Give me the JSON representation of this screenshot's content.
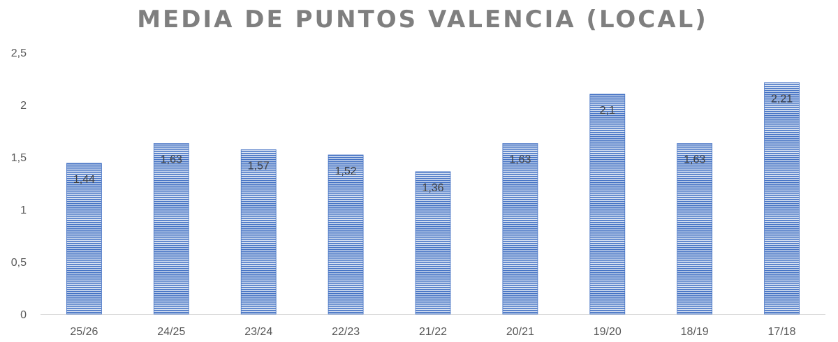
{
  "chart_data": {
    "type": "bar",
    "title": "MEDIA DE PUNTOS VALENCIA (LOCAL)",
    "xlabel": "",
    "ylabel": "",
    "categories": [
      "25/26",
      "24/25",
      "23/24",
      "22/23",
      "21/22",
      "20/21",
      "19/20",
      "18/19",
      "17/18"
    ],
    "values": [
      1.44,
      1.63,
      1.57,
      1.52,
      1.36,
      1.63,
      2.1,
      1.63,
      2.21
    ],
    "data_labels": [
      "1,44",
      "1,63",
      "1,57",
      "1,52",
      "1,36",
      "1,63",
      "2,1",
      "1,63",
      "2,21"
    ],
    "yticks": [
      0,
      0.5,
      1,
      1.5,
      2,
      2.5
    ],
    "ytick_labels": [
      "0",
      "0,5",
      "1",
      "1,5",
      "2",
      "2,5"
    ],
    "ylim": [
      0,
      2.5
    ],
    "grid": false,
    "legend": "none",
    "bar_color": "#4472c4",
    "bar_stripe_color": "#dbe4f3"
  }
}
